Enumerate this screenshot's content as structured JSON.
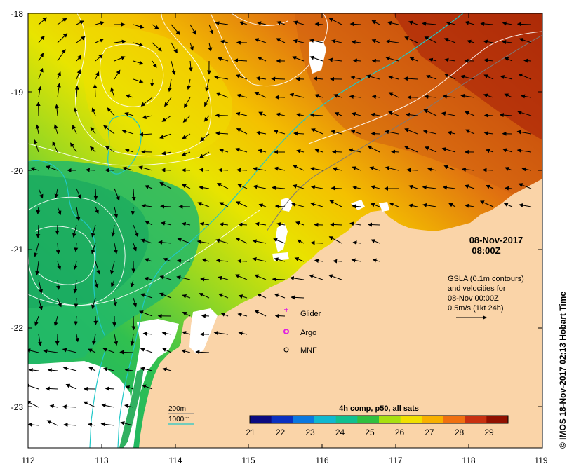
{
  "map": {
    "lon_ticks": [
      "112",
      "113",
      "114",
      "115",
      "116",
      "117",
      "118",
      "119"
    ],
    "lat_ticks": [
      "-18",
      "-19",
      "-20",
      "-21",
      "-22",
      "-23"
    ],
    "lon_range": [
      112,
      119
    ],
    "lat_range": [
      -23.5,
      -18
    ]
  },
  "annotation": {
    "date": "08-Nov-2017",
    "time": "08:00Z",
    "gsla_lines": [
      "GSLA (0.1m contours)",
      "and velocities for",
      "08-Nov 00:00Z",
      "0.5m/s (1kt 24h)"
    ]
  },
  "legend_markers": [
    {
      "label": "Glider",
      "color": "#e020e0",
      "symbol": "plus"
    },
    {
      "label": "Argo",
      "color": "#e020e0",
      "symbol": "circle"
    },
    {
      "label": "MNF",
      "color": "#000000",
      "symbol": "circle"
    }
  ],
  "contour_legend": [
    {
      "label": "200m",
      "color": "#7a7a7a"
    },
    {
      "label": "1000m",
      "color": "#20c8c8"
    }
  ],
  "colorbar": {
    "title": "4h comp, p50, all sats",
    "labels": [
      "21",
      "22",
      "23",
      "24",
      "25",
      "26",
      "27",
      "28",
      "29"
    ],
    "colors": [
      "#0a0a80",
      "#0a30c0",
      "#0a78e0",
      "#10b8d0",
      "#10c090",
      "#30c040",
      "#a8e010",
      "#f0e000",
      "#f8b000",
      "#f07010",
      "#c83010",
      "#901000"
    ]
  },
  "credit": "© IMOS 18-Nov-2017 02:13 Hobart Time"
}
